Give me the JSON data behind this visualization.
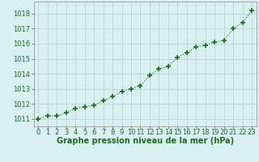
{
  "x": [
    0,
    1,
    2,
    3,
    4,
    5,
    6,
    7,
    8,
    9,
    10,
    11,
    12,
    13,
    14,
    15,
    16,
    17,
    18,
    19,
    20,
    21,
    22,
    23
  ],
  "y": [
    1011.0,
    1011.2,
    1011.2,
    1011.4,
    1011.7,
    1011.8,
    1011.9,
    1012.2,
    1012.5,
    1012.8,
    1013.0,
    1013.2,
    1013.9,
    1014.3,
    1014.5,
    1015.1,
    1015.4,
    1015.8,
    1015.9,
    1016.1,
    1016.2,
    1017.0,
    1017.4,
    1018.2
  ],
  "line_color": "#1a6e1a",
  "marker": "+",
  "marker_size": 4,
  "bg_color": "#d8f0f0",
  "grid_color": "#b8d4d4",
  "xlabel": "Graphe pression niveau de la mer (hPa)",
  "xlabel_color": "#1a6e1a",
  "xlabel_fontsize": 7,
  "tick_label_color": "#1a6e1a",
  "tick_label_fontsize": 6,
  "ylim": [
    1010.5,
    1018.8
  ],
  "yticks": [
    1011,
    1012,
    1013,
    1014,
    1015,
    1016,
    1017,
    1018
  ],
  "xlim": [
    -0.5,
    23.5
  ],
  "xticks": [
    0,
    1,
    2,
    3,
    4,
    5,
    6,
    7,
    8,
    9,
    10,
    11,
    12,
    13,
    14,
    15,
    16,
    17,
    18,
    19,
    20,
    21,
    22,
    23
  ]
}
